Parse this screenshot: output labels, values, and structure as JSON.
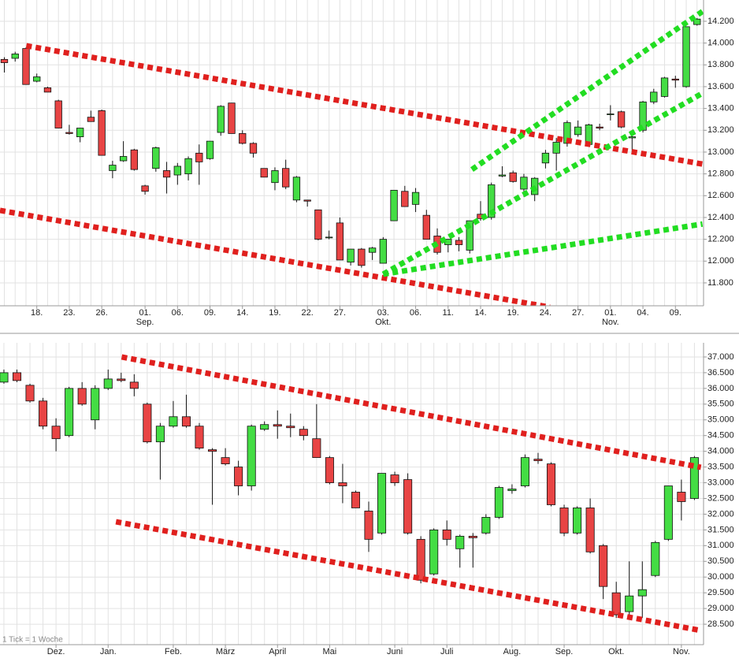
{
  "chart_data": [
    {
      "type": "candlestick",
      "categories": [
        null,
        null,
        null,
        "18.",
        null,
        null,
        "23.",
        null,
        null,
        "26.",
        null,
        null,
        null,
        "01.",
        null,
        null,
        "06.",
        null,
        null,
        "09.",
        null,
        null,
        "14.",
        null,
        null,
        "19.",
        null,
        null,
        "22.",
        null,
        null,
        "27.",
        null,
        null,
        null,
        "03.",
        null,
        null,
        "06.",
        null,
        null,
        "11.",
        null,
        null,
        "14.",
        null,
        null,
        "19.",
        null,
        null,
        "24.",
        null,
        null,
        "27.",
        null,
        null,
        "01.",
        null,
        null,
        "04.",
        null,
        null,
        "09.",
        null,
        null
      ],
      "month_labels": [
        null,
        null,
        null,
        null,
        null,
        null,
        null,
        null,
        null,
        null,
        null,
        null,
        null,
        "Sep.",
        null,
        null,
        null,
        null,
        null,
        null,
        null,
        null,
        null,
        null,
        null,
        null,
        null,
        null,
        null,
        null,
        null,
        null,
        null,
        null,
        null,
        "Okt.",
        null,
        null,
        null,
        null,
        null,
        null,
        null,
        null,
        null,
        null,
        null,
        null,
        null,
        null,
        null,
        null,
        null,
        null,
        null,
        null,
        "Nov.",
        null,
        null,
        null,
        null,
        null,
        null,
        null,
        null
      ],
      "open": [
        13850,
        13860,
        13950,
        13650,
        13590,
        13470,
        13180,
        13140,
        13320,
        13380,
        12830,
        12920,
        13020,
        12690,
        12850,
        12830,
        12790,
        12800,
        12990,
        12940,
        13180,
        13450,
        13170,
        13080,
        12850,
        12720,
        12850,
        12560,
        12560,
        12470,
        12220,
        12350,
        11990,
        12110,
        12080,
        11980,
        12370,
        12640,
        12520,
        12420,
        12230,
        12150,
        12190,
        12100,
        12430,
        12400,
        12780,
        12810,
        12660,
        12610,
        12900,
        12990,
        13080,
        13160,
        13070,
        13230,
        13350,
        13370,
        13130,
        13200,
        13460,
        13510,
        13670,
        13600,
        14170
      ],
      "high": [
        13870,
        13920,
        13960,
        13720,
        13600,
        13480,
        13250,
        13220,
        13380,
        13390,
        12920,
        13100,
        13030,
        12700,
        13050,
        12910,
        12900,
        12960,
        13070,
        13100,
        13430,
        13450,
        13200,
        13090,
        12850,
        12860,
        12930,
        12780,
        12560,
        12470,
        12280,
        12400,
        12110,
        12120,
        12130,
        12220,
        12650,
        12690,
        12670,
        12470,
        12300,
        12200,
        12220,
        12370,
        12550,
        12720,
        12870,
        12830,
        12800,
        12770,
        13020,
        13130,
        13290,
        13290,
        13260,
        13260,
        13430,
        13380,
        13180,
        13470,
        13580,
        13690,
        13700,
        14150,
        14230
      ],
      "low": [
        13730,
        13830,
        13620,
        13640,
        13550,
        13220,
        13160,
        13090,
        13280,
        12970,
        12760,
        12910,
        12830,
        12610,
        12820,
        12620,
        12700,
        12740,
        12700,
        12930,
        13150,
        13170,
        13070,
        12950,
        12770,
        12650,
        12660,
        12540,
        12500,
        12190,
        12200,
        12010,
        11960,
        11940,
        12010,
        11980,
        12370,
        12500,
        12450,
        12200,
        12060,
        12080,
        12090,
        12070,
        12370,
        12380,
        12770,
        12720,
        12590,
        12550,
        12850,
        12830,
        13050,
        13140,
        13060,
        13200,
        13290,
        13220,
        12990,
        13180,
        13440,
        13500,
        13590,
        13590,
        14160
      ],
      "close": [
        13820,
        13900,
        13620,
        13690,
        13550,
        13220,
        13170,
        13220,
        13280,
        12970,
        12880,
        12960,
        12840,
        12640,
        13040,
        12770,
        12870,
        12940,
        12910,
        13100,
        13420,
        13170,
        13080,
        12990,
        12770,
        12830,
        12680,
        12770,
        12550,
        12200,
        12220,
        12010,
        12110,
        11960,
        12120,
        12200,
        12650,
        12500,
        12630,
        12200,
        12080,
        12200,
        12150,
        12370,
        12390,
        12700,
        12790,
        12730,
        12770,
        12760,
        12990,
        13090,
        13270,
        13230,
        13250,
        13220,
        13350,
        13230,
        13140,
        13460,
        13550,
        13680,
        13660,
        14150,
        14220
      ],
      "up_color": "#44dd44",
      "down_color": "#e84444",
      "ylim": [
        11590,
        14395
      ],
      "yticks": [
        {
          "value": 11800,
          "label": "11.800"
        },
        {
          "value": 12000,
          "label": "12.000"
        },
        {
          "value": 12200,
          "label": "12.200"
        },
        {
          "value": 12400,
          "label": "12.400"
        },
        {
          "value": 12600,
          "label": "12.600"
        },
        {
          "value": 12800,
          "label": "12.800"
        },
        {
          "value": 13000,
          "label": "13.000"
        },
        {
          "value": 13200,
          "label": "13.200"
        },
        {
          "value": 13400,
          "label": "13.400"
        },
        {
          "value": 13600,
          "label": "13.600"
        },
        {
          "value": 13800,
          "label": "13.800"
        },
        {
          "value": 14000,
          "label": "14.000"
        },
        {
          "value": 14200,
          "label": "14.200"
        }
      ],
      "grid": true,
      "trendlines": [
        {
          "color": "#e0201e",
          "x": [
            2.03,
            64.5
          ],
          "y": [
            13975,
            12890
          ]
        },
        {
          "color": "#e0201e",
          "x": [
            -0.4,
            50.4
          ],
          "y": [
            12465,
            11577
          ]
        },
        {
          "color": "#22dd22",
          "x": [
            43.2,
            64.5
          ],
          "y": [
            12840,
            14290
          ]
        },
        {
          "color": "#22dd22",
          "x": [
            35,
            64.5
          ],
          "y": [
            11880,
            13540
          ]
        },
        {
          "color": "#22dd22",
          "x": [
            35,
            64.5
          ],
          "y": [
            11880,
            12340
          ]
        }
      ]
    },
    {
      "type": "candlestick",
      "categories": [
        null,
        null,
        null,
        null,
        "Dez.",
        null,
        null,
        null,
        "Jan.",
        null,
        null,
        null,
        null,
        "Feb.",
        null,
        null,
        null,
        "März",
        null,
        null,
        null,
        "April",
        null,
        null,
        null,
        "Mai",
        null,
        null,
        null,
        null,
        "Juni",
        null,
        null,
        null,
        "Juli",
        null,
        null,
        null,
        null,
        "Aug.",
        null,
        null,
        null,
        "Sep.",
        null,
        null,
        null,
        "Okt.",
        null,
        null,
        null,
        null,
        "Nov.",
        null
      ],
      "open": [
        36200,
        36500,
        36100,
        35600,
        34800,
        34500,
        36000,
        35000,
        36000,
        36300,
        36200,
        35500,
        34300,
        34800,
        35100,
        34800,
        34050,
        33800,
        33500,
        32900,
        34700,
        34850,
        34800,
        34700,
        34400,
        33800,
        33000,
        32700,
        32100,
        31400,
        33250,
        33100,
        31200,
        30100,
        31500,
        30900,
        31300,
        31400,
        31900,
        32750,
        32900,
        33750,
        33600,
        32200,
        31400,
        32200,
        31000,
        29500,
        28900,
        29400,
        30050,
        31200,
        32700,
        32500
      ],
      "high": [
        36600,
        36600,
        36150,
        35700,
        35050,
        36050,
        36200,
        36100,
        36600,
        36500,
        36450,
        35550,
        34900,
        35600,
        35800,
        34900,
        34100,
        34100,
        33700,
        34850,
        34950,
        35300,
        35200,
        34800,
        35500,
        33850,
        33600,
        32750,
        32400,
        33300,
        33350,
        33300,
        31300,
        31550,
        31800,
        31350,
        31400,
        32000,
        32900,
        32950,
        33900,
        33950,
        33650,
        32300,
        32250,
        32500,
        31050,
        29850,
        30500,
        30500,
        31150,
        32900,
        33100,
        33850
      ],
      "low": [
        36150,
        36200,
        35550,
        34700,
        34000,
        34450,
        35450,
        34700,
        35950,
        36200,
        35750,
        34250,
        33100,
        34750,
        34750,
        34050,
        32300,
        33550,
        32600,
        32750,
        34650,
        34400,
        34450,
        34350,
        33800,
        32950,
        32350,
        32200,
        30800,
        31350,
        32900,
        31350,
        29800,
        30050,
        31000,
        30300,
        30300,
        31350,
        31850,
        32650,
        32850,
        33600,
        32250,
        31300,
        31350,
        30750,
        29300,
        28700,
        28750,
        28700,
        30000,
        31150,
        31800,
        32450
      ],
      "close": [
        36500,
        36250,
        35600,
        34800,
        34400,
        36000,
        35500,
        36000,
        36300,
        36250,
        36000,
        34300,
        34800,
        35100,
        34800,
        34100,
        34000,
        33600,
        32900,
        34800,
        34850,
        34800,
        34750,
        34500,
        33800,
        33000,
        32900,
        32200,
        31200,
        33300,
        33000,
        31400,
        29900,
        31500,
        31200,
        31300,
        31250,
        31900,
        32850,
        32800,
        33800,
        33700,
        32300,
        31400,
        32200,
        30800,
        29700,
        28800,
        29400,
        29600,
        31100,
        32900,
        32400,
        33800
      ],
      "up_color": "#44dd44",
      "down_color": "#e84444",
      "ylim": [
        27850,
        37450
      ],
      "yticks": [
        {
          "value": 28500,
          "label": "28.500"
        },
        {
          "value": 29000,
          "label": "29.000"
        },
        {
          "value": 29500,
          "label": "29.500"
        },
        {
          "value": 30000,
          "label": "30.000"
        },
        {
          "value": 30500,
          "label": "30.500"
        },
        {
          "value": 31000,
          "label": "31.000"
        },
        {
          "value": 31500,
          "label": "31.500"
        },
        {
          "value": 32000,
          "label": "32.000"
        },
        {
          "value": 32500,
          "label": "32.500"
        },
        {
          "value": 33000,
          "label": "33.000"
        },
        {
          "value": 33500,
          "label": "33.500"
        },
        {
          "value": 34000,
          "label": "34.000"
        },
        {
          "value": 34500,
          "label": "34.500"
        },
        {
          "value": 35000,
          "label": "35.000"
        },
        {
          "value": 35500,
          "label": "35.500"
        },
        {
          "value": 36000,
          "label": "36.000"
        },
        {
          "value": 36500,
          "label": "36.500"
        },
        {
          "value": 37000,
          "label": "37.000"
        }
      ],
      "grid": true,
      "annotation": "1 Tick = 1 Woche",
      "trendlines": [
        {
          "color": "#e0201e",
          "x": [
            9.04,
            53.5
          ],
          "y": [
            37000,
            33490
          ]
        },
        {
          "color": "#e0201e",
          "x": [
            8.6,
            53.5
          ],
          "y": [
            31760,
            28300
          ]
        }
      ]
    }
  ]
}
